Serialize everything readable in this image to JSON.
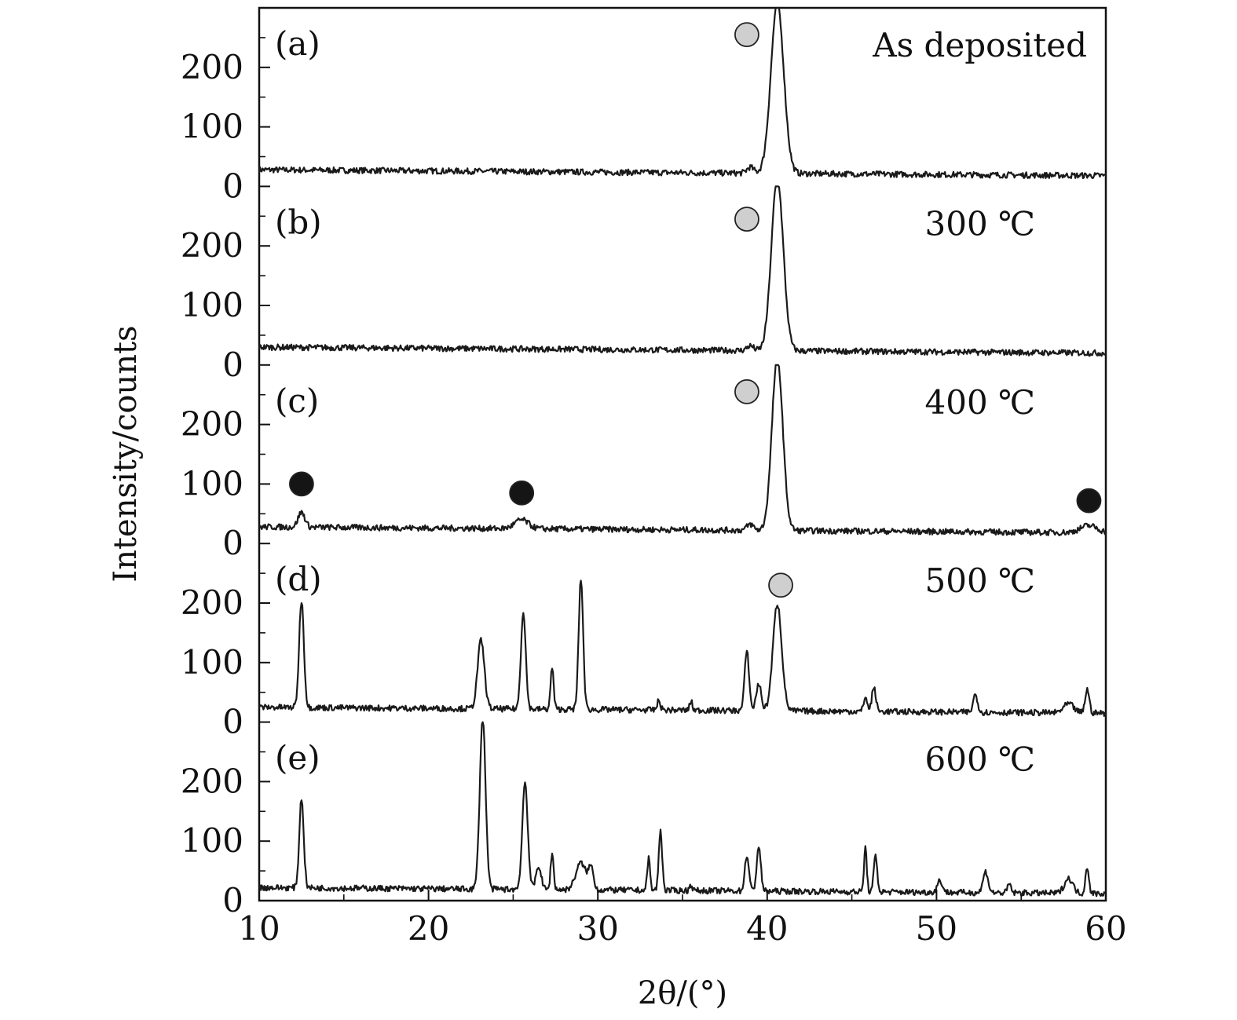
{
  "chart_data": {
    "type": "line",
    "xlabel": "2θ/(°)",
    "ylabel": "Intensity/counts",
    "xlim": [
      10,
      60
    ],
    "x_ticks": [
      10,
      20,
      30,
      40,
      50,
      60
    ],
    "ylim": [
      0,
      300
    ],
    "y_ticks": [
      0,
      100,
      200
    ],
    "grid": false,
    "legend": "none",
    "colors": {
      "trace": "#1a1a1a",
      "marker_gray": "#cfcfcf",
      "marker_black": "#151515"
    },
    "panels": [
      {
        "id": "a",
        "label": "(a)",
        "condition": "As deposited",
        "baseline_start": 28,
        "baseline_end": 18,
        "noise": 5,
        "peaks": [
          [
            40.6,
            285,
            0.38
          ],
          [
            39.0,
            10,
            0.2
          ]
        ],
        "markers": [
          {
            "x": 38.8,
            "y": 255,
            "kind": "gray"
          }
        ]
      },
      {
        "id": "b",
        "label": "(b)",
        "condition": "300 ℃",
        "baseline_start": 30,
        "baseline_end": 20,
        "noise": 5,
        "peaks": [
          [
            40.6,
            290,
            0.35
          ],
          [
            39.0,
            8,
            0.2
          ]
        ],
        "markers": [
          {
            "x": 38.8,
            "y": 245,
            "kind": "gray"
          }
        ]
      },
      {
        "id": "c",
        "label": "(c)",
        "condition": "400 ℃",
        "baseline_start": 28,
        "baseline_end": 18,
        "noise": 5,
        "peaks": [
          [
            40.6,
            290,
            0.32
          ],
          [
            12.5,
            25,
            0.2
          ],
          [
            25.5,
            15,
            0.4
          ],
          [
            59.0,
            12,
            0.5
          ],
          [
            39.0,
            10,
            0.2
          ]
        ],
        "markers": [
          {
            "x": 38.8,
            "y": 255,
            "kind": "gray"
          },
          {
            "x": 12.5,
            "y": 100,
            "kind": "black"
          },
          {
            "x": 25.5,
            "y": 85,
            "kind": "black"
          },
          {
            "x": 59.0,
            "y": 72,
            "kind": "black"
          }
        ]
      },
      {
        "id": "d",
        "label": "(d)",
        "condition": "500 ℃",
        "baseline_start": 25,
        "baseline_end": 15,
        "noise": 5,
        "peaks": [
          [
            12.5,
            180,
            0.14
          ],
          [
            23.1,
            115,
            0.2
          ],
          [
            25.6,
            165,
            0.14
          ],
          [
            27.3,
            70,
            0.09
          ],
          [
            29.0,
            220,
            0.13
          ],
          [
            33.6,
            15,
            0.1
          ],
          [
            35.5,
            15,
            0.08
          ],
          [
            38.8,
            100,
            0.13
          ],
          [
            39.5,
            45,
            0.15
          ],
          [
            40.6,
            180,
            0.26
          ],
          [
            45.8,
            25,
            0.1
          ],
          [
            46.3,
            40,
            0.12
          ],
          [
            52.3,
            30,
            0.13
          ],
          [
            57.8,
            15,
            0.3
          ],
          [
            58.9,
            40,
            0.12
          ]
        ],
        "markers": [
          {
            "x": 40.8,
            "y": 230,
            "kind": "gray"
          }
        ]
      },
      {
        "id": "e",
        "label": "(e)",
        "condition": "600 ℃",
        "baseline_start": 22,
        "baseline_end": 12,
        "noise": 5,
        "peaks": [
          [
            12.5,
            150,
            0.13
          ],
          [
            23.2,
            290,
            0.17
          ],
          [
            25.7,
            180,
            0.16
          ],
          [
            26.5,
            40,
            0.15
          ],
          [
            27.3,
            60,
            0.09
          ],
          [
            29.0,
            45,
            0.3
          ],
          [
            29.6,
            35,
            0.15
          ],
          [
            33.0,
            55,
            0.08
          ],
          [
            33.7,
            100,
            0.1
          ],
          [
            35.5,
            10,
            0.08
          ],
          [
            38.8,
            60,
            0.12
          ],
          [
            39.5,
            75,
            0.12
          ],
          [
            45.8,
            75,
            0.08
          ],
          [
            46.4,
            60,
            0.1
          ],
          [
            50.2,
            20,
            0.15
          ],
          [
            52.9,
            35,
            0.15
          ],
          [
            54.3,
            15,
            0.1
          ],
          [
            57.8,
            25,
            0.25
          ],
          [
            58.9,
            45,
            0.1
          ]
        ],
        "markers": []
      }
    ]
  }
}
